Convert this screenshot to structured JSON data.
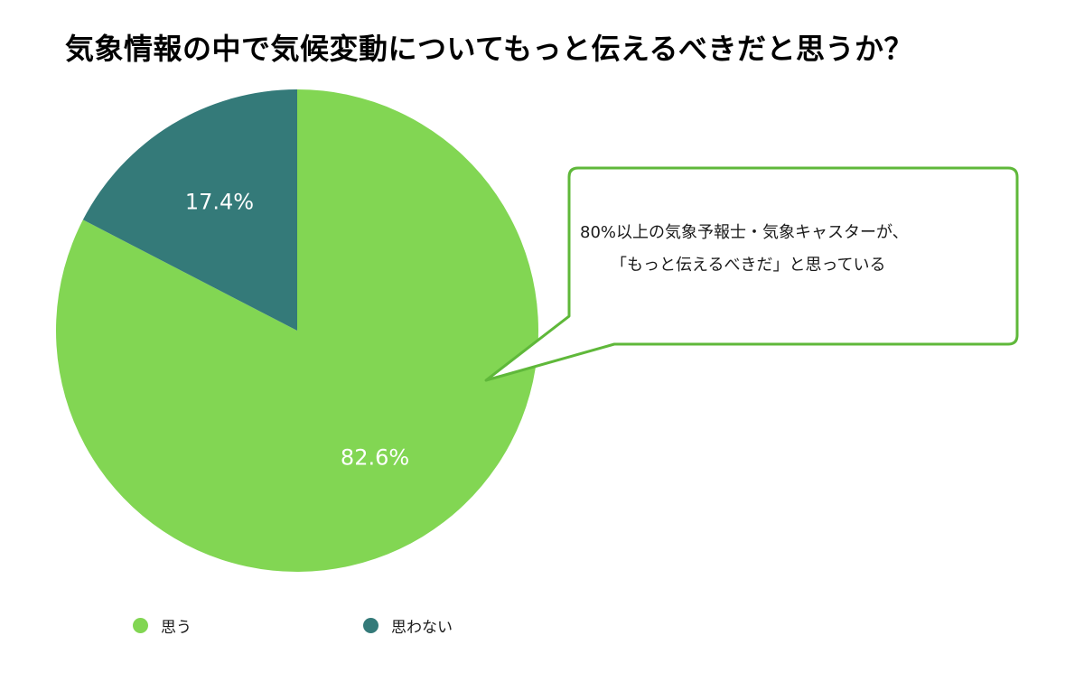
{
  "chart_data": {
    "type": "pie",
    "title": "気象情報の中で気候変動についてもっと伝えるべきだと思うか？",
    "slices": [
      {
        "label": "思う",
        "value": 82.6,
        "display": "82.6%",
        "color": "#82d653"
      },
      {
        "label": "思わない",
        "value": 17.4,
        "display": "17.4%",
        "color": "#347a79"
      }
    ],
    "start_angle_deg": 0,
    "direction": "clockwise",
    "legend_position": "bottom",
    "annotation": {
      "line1": "80%以上の気象予報士・気象キャスターが、",
      "line2": "「もっと伝えるべきだ」と思っている",
      "border_color": "#5fb83a"
    }
  }
}
